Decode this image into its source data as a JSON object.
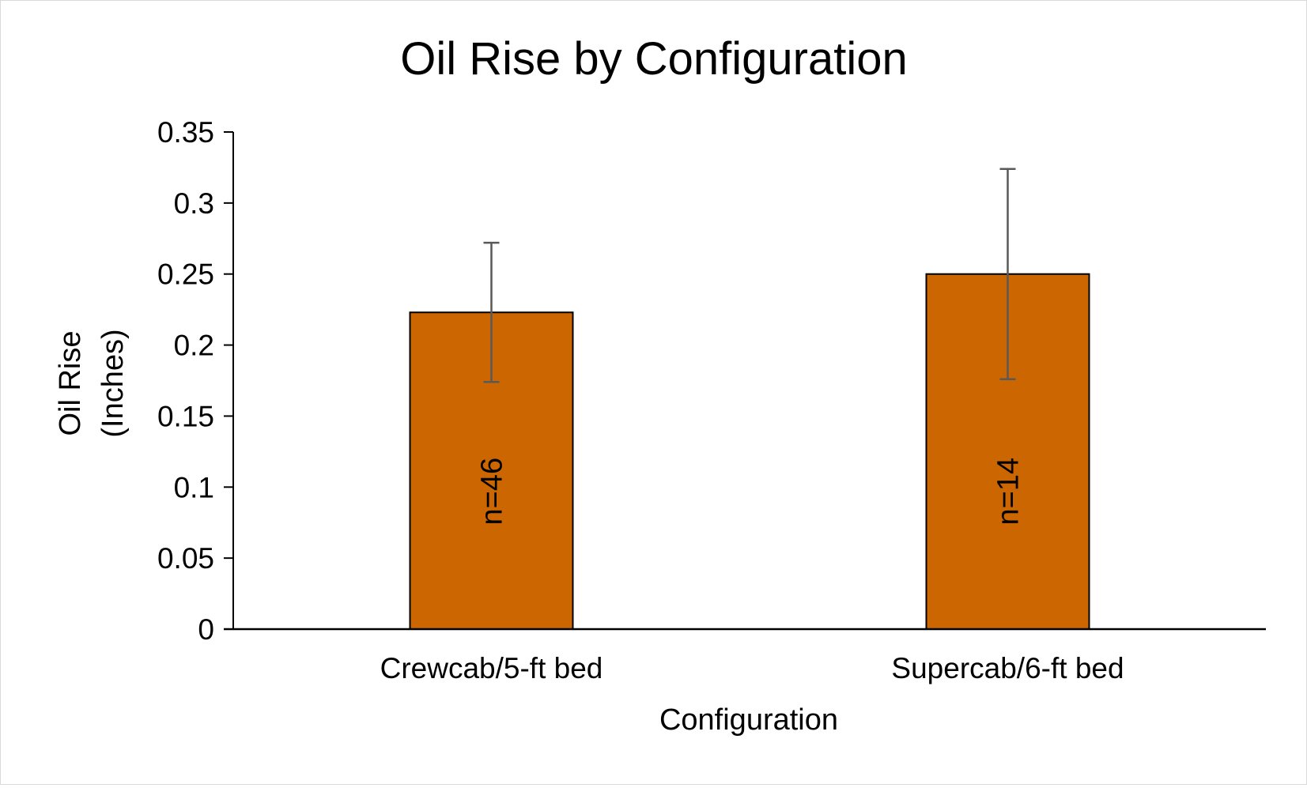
{
  "chart_data": {
    "type": "bar",
    "title": "Oil Rise by Configuration",
    "xlabel": "Configuration",
    "ylabel_lines": [
      "Oil Rise",
      "(Inches)"
    ],
    "categories": [
      "Crewcab/5-ft bed",
      "Supercab/6-ft bed"
    ],
    "values": [
      0.223,
      0.25
    ],
    "error_low": [
      0.174,
      0.176
    ],
    "error_high": [
      0.272,
      0.324
    ],
    "bar_labels": [
      "n=46",
      "n=14"
    ],
    "ylim": [
      0,
      0.35
    ],
    "yticks": [
      0,
      0.05,
      0.1,
      0.15,
      0.2,
      0.25,
      0.3,
      0.35
    ],
    "ytick_labels": [
      "0",
      "0.05",
      "0.1",
      "0.15",
      "0.2",
      "0.25",
      "0.3",
      "0.35"
    ],
    "grid": false,
    "legend": "none",
    "colors": {
      "bar_fill": "#cc6600",
      "bar_stroke": "#000000",
      "error_bar": "#595959",
      "axis": "#000000"
    }
  }
}
